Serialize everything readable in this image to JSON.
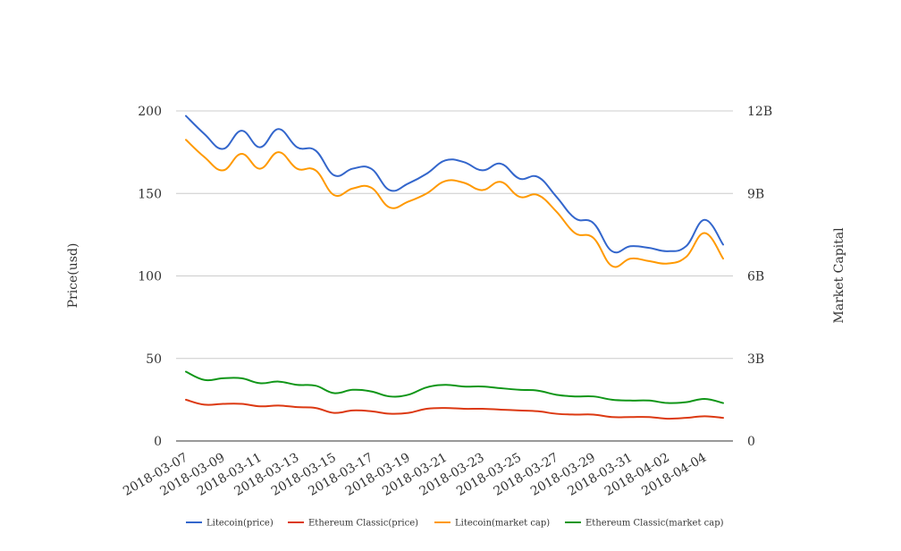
{
  "chart_data": {
    "type": "line",
    "title": "",
    "ylabel_left": "Price(usd)",
    "ylabel_right": "Market Capital",
    "ylim_left": [
      0,
      200
    ],
    "ylim_right": [
      0,
      12000000000
    ],
    "yticks_left": [
      "200",
      "150",
      "100",
      "50",
      "0"
    ],
    "yticks_right": [
      "12B",
      "9B",
      "6B",
      "3B",
      "0"
    ],
    "grid": true,
    "legend_position": "bottom",
    "x_tick_labels": [
      "2018-03-07",
      "2018-03-09",
      "2018-03-11",
      "2018-03-13",
      "2018-03-15",
      "2018-03-17",
      "2018-03-19",
      "2018-03-21",
      "2018-03-23",
      "2018-03-25",
      "2018-03-27",
      "2018-03-29",
      "2018-03-31",
      "2018-04-02",
      "2018-04-04"
    ],
    "x": [
      "2018-03-07",
      "2018-03-08",
      "2018-03-09",
      "2018-03-10",
      "2018-03-11",
      "2018-03-12",
      "2018-03-13",
      "2018-03-14",
      "2018-03-15",
      "2018-03-16",
      "2018-03-17",
      "2018-03-18",
      "2018-03-19",
      "2018-03-20",
      "2018-03-21",
      "2018-03-22",
      "2018-03-23",
      "2018-03-24",
      "2018-03-25",
      "2018-03-26",
      "2018-03-27",
      "2018-03-28",
      "2018-03-29",
      "2018-03-30",
      "2018-03-31",
      "2018-04-01",
      "2018-04-02",
      "2018-04-03",
      "2018-04-04",
      "2018-04-05"
    ],
    "series": [
      {
        "name": "Litecoin(price)",
        "axis": "left",
        "color": "#3366cc",
        "values": [
          197,
          186,
          177,
          188,
          178,
          189,
          178,
          176,
          161,
          165,
          165,
          152,
          156,
          162,
          170,
          169,
          164,
          168,
          159,
          160,
          148,
          135,
          132,
          115,
          118,
          117,
          115,
          118,
          134,
          119
        ]
      },
      {
        "name": "Ethereum Classic(price)",
        "axis": "left",
        "color": "#dc3912",
        "values": [
          25,
          22,
          22.5,
          22.5,
          21,
          21.5,
          20.5,
          20,
          17,
          18.5,
          18,
          16.5,
          17,
          19.5,
          20,
          19.5,
          19.5,
          19,
          18.5,
          18,
          16.5,
          16,
          16,
          14.5,
          14.5,
          14.5,
          13.5,
          14,
          15,
          14
        ]
      },
      {
        "name": "Litecoin(market cap)",
        "axis": "right",
        "color": "#ff9900",
        "values": [
          10950000000,
          10320000000,
          9840000000,
          10440000000,
          9900000000,
          10500000000,
          9900000000,
          9840000000,
          8940000000,
          9180000000,
          9210000000,
          8490000000,
          8700000000,
          9000000000,
          9450000000,
          9390000000,
          9120000000,
          9420000000,
          8880000000,
          8940000000,
          8340000000,
          7560000000,
          7380000000,
          6360000000,
          6630000000,
          6540000000,
          6450000000,
          6690000000,
          7560000000,
          6630000000
        ]
      },
      {
        "name": "Ethereum Classic(market cap)",
        "axis": "right",
        "color": "#109618",
        "values": [
          2520000000,
          2220000000,
          2280000000,
          2280000000,
          2100000000,
          2160000000,
          2040000000,
          2010000000,
          1740000000,
          1860000000,
          1800000000,
          1620000000,
          1680000000,
          1950000000,
          2040000000,
          1980000000,
          1980000000,
          1920000000,
          1860000000,
          1830000000,
          1680000000,
          1620000000,
          1620000000,
          1500000000,
          1470000000,
          1470000000,
          1380000000,
          1410000000,
          1530000000,
          1380000000
        ]
      }
    ]
  }
}
